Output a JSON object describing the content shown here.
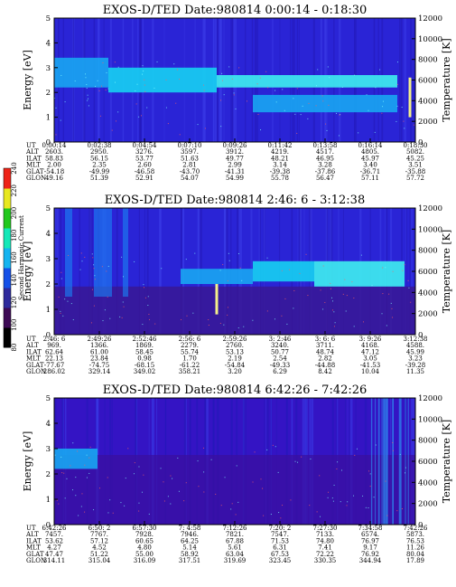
{
  "chart_data": [
    {
      "type": "heatmap",
      "title": "EXOS-D/TED   Date:980814   0:00:14 - 0:18:30",
      "ylabel": "Energy [eV]",
      "y2label": "Temperature [K]",
      "ylim": [
        0,
        5
      ],
      "y2lim": [
        0,
        12000
      ],
      "yticks": [
        "0",
        "1",
        "2",
        "3",
        "4",
        "5"
      ],
      "y2ticks": [
        "0",
        "2000",
        "4000",
        "6000",
        "8000",
        "10000",
        "12000"
      ],
      "bands": [
        {
          "t0": 0.0,
          "t1": 0.15,
          "e0": 2.2,
          "e1": 3.4,
          "level": 2
        },
        {
          "t0": 0.15,
          "t1": 0.45,
          "e0": 2.0,
          "e1": 3.0,
          "level": 3
        },
        {
          "t0": 0.45,
          "t1": 0.95,
          "e0": 2.2,
          "e1": 2.7,
          "level": 4
        },
        {
          "t0": 0.55,
          "t1": 0.95,
          "e0": 1.2,
          "e1": 1.9,
          "level": 2
        }
      ],
      "spike": {
        "t": 0.985,
        "e0": 1.0,
        "e1": 2.6
      },
      "table": {
        "labels": [
          "UT",
          "ALT",
          "ILAT",
          "MLT",
          "GLAT",
          "GLON"
        ],
        "columns": [
          [
            "0:00:14",
            "2603.",
            "58.83",
            "2.00",
            "-54.18",
            "49.16"
          ],
          [
            "0:02:38",
            "2950.",
            "56.15",
            "2.35",
            "-49.99",
            "51.39"
          ],
          [
            "0:04:54",
            "3276.",
            "53.77",
            "2.60",
            "-46.58",
            "52.91"
          ],
          [
            "0:07:10",
            "3597.",
            "51.63",
            "2.81",
            "-43.70",
            "54.07"
          ],
          [
            "0:09:26",
            "3912.",
            "49.77",
            "2.99",
            "-41.31",
            "54.99"
          ],
          [
            "0:11:42",
            "4219.",
            "48.21",
            "3.14",
            "-39.38",
            "55.78"
          ],
          [
            "0:13:58",
            "4517.",
            "46.95",
            "3.28",
            "-37.86",
            "56.47"
          ],
          [
            "0:16:14",
            "4805.",
            "45.97",
            "3.40",
            "-36.71",
            "57.11"
          ],
          [
            "0:18:30",
            "5082.",
            "45.25",
            "3.51",
            "-35.88",
            "57.72"
          ]
        ]
      }
    },
    {
      "type": "heatmap",
      "title": "EXOS-D/TED   Date:980814   2:46: 6 - 3:12:38",
      "ylabel": "Energy [eV]",
      "y2label": "Temperature [K]",
      "ylim": [
        0,
        5
      ],
      "y2lim": [
        0,
        12000
      ],
      "yticks": [
        "0",
        "1",
        "2",
        "3",
        "4",
        "5"
      ],
      "y2ticks": [
        "0",
        "2000",
        "4000",
        "6000",
        "8000",
        "10000",
        "12000"
      ],
      "bands": [
        {
          "t0": 0.35,
          "t1": 0.55,
          "e0": 2.0,
          "e1": 2.6,
          "level": 2
        },
        {
          "t0": 0.55,
          "t1": 0.72,
          "e0": 2.1,
          "e1": 2.9,
          "level": 3
        },
        {
          "t0": 0.72,
          "t1": 0.97,
          "e0": 1.9,
          "e1": 2.9,
          "level": 4
        }
      ],
      "spike": {
        "t": 0.45,
        "e0": 0.8,
        "e1": 2.0
      },
      "table": {
        "labels": [
          "UT",
          "ALT",
          "ILAT",
          "MLT",
          "GLAT",
          "GLON"
        ],
        "columns": [
          [
            "2:46: 6",
            "969.",
            "62.64",
            "22.13",
            "-77.67",
            "286.02"
          ],
          [
            "2:49:26",
            "1366.",
            "61.00",
            "23.84",
            "-74.75",
            "329.14"
          ],
          [
            "2:52:46",
            "1869.",
            "58.45",
            "0.98",
            "-68.15",
            "349.02"
          ],
          [
            "2:56: 6",
            "2279.",
            "55.74",
            "1.70",
            "-61.22",
            "358.21"
          ],
          [
            "2:59:26",
            "2760.",
            "53.13",
            "2.19",
            "-54.84",
            "3.20"
          ],
          [
            "3: 2:46",
            "3240.",
            "50.77",
            "2.54",
            "-49.33",
            "6.29"
          ],
          [
            "3: 6: 6",
            "3711.",
            "48.74",
            "2.82",
            "-44.88",
            "8.42"
          ],
          [
            "3: 9:26",
            "4168.",
            "47.12",
            "3.05",
            "-41.53",
            "10.04"
          ],
          [
            "3:12:38",
            "4588.",
            "45.99",
            "3.23",
            "-39.28",
            "11.35"
          ]
        ]
      }
    },
    {
      "type": "heatmap",
      "title": "EXOS-D/TED   Date:980814   6:42:26 - 7:42:26",
      "ylabel": "Energy [eV]",
      "y2label": "Temperature [K]",
      "ylim": [
        0,
        5
      ],
      "y2lim": [
        0,
        12000
      ],
      "yticks": [
        "0",
        "1",
        "2",
        "3",
        "4",
        "5"
      ],
      "y2ticks": [
        "0",
        "2000",
        "4000",
        "6000",
        "8000",
        "10000",
        "12000"
      ],
      "bands": [
        {
          "t0": 0.0,
          "t1": 0.12,
          "e0": 2.2,
          "e1": 3.0,
          "level": 2
        }
      ],
      "table": {
        "labels": [
          "UT",
          "ALT",
          "ILAT",
          "MLT",
          "GLAT",
          "GLON"
        ],
        "columns": [
          [
            "6:42:26",
            "7457.",
            "53.62",
            "4.27",
            "47.47",
            "314.11"
          ],
          [
            "6:50: 2",
            "7767.",
            "57.12",
            "4.52",
            "51.22",
            "315.04"
          ],
          [
            "6:57:30",
            "7928.",
            "60.65",
            "4.80",
            "55.00",
            "316.09"
          ],
          [
            "7: 4:58",
            "7946.",
            "64.25",
            "5.14",
            "58.92",
            "317.51"
          ],
          [
            "7:12:26",
            "7821.",
            "67.88",
            "5.61",
            "63.04",
            "319.69"
          ],
          [
            "7:20: 2",
            "7547.",
            "71.53",
            "6.31",
            "67.53",
            "323.45"
          ],
          [
            "7:27:30",
            "7133.",
            "74.80",
            "7.41",
            "72.22",
            "330.35"
          ],
          [
            "7:34:58",
            "6574.",
            "76.97",
            "9.17",
            "76.92",
            "344.94"
          ],
          [
            "7:42:26",
            "5873.",
            "76.53",
            "11.26",
            "80.04",
            "17.89"
          ]
        ]
      }
    }
  ],
  "colorbar": {
    "title": "Second Harmonic Current",
    "ticks": [
      "80",
      "100",
      "120",
      "140",
      "160",
      "180",
      "200",
      "220",
      "240"
    ],
    "colors": [
      "#000000",
      "#3d0a55",
      "#2e2a9c",
      "#1450e8",
      "#14b4f0",
      "#14e8b8",
      "#22c81e",
      "#e8e820",
      "#ee2418"
    ]
  },
  "colors": {
    "background": "#2a24d6",
    "band_levels": [
      "#2a24d6",
      "#1a5ef0",
      "#18a6f2",
      "#16d2f2",
      "#3ef0f0"
    ],
    "panel3_background": "#3414c4",
    "spike": "#f4f08a"
  }
}
